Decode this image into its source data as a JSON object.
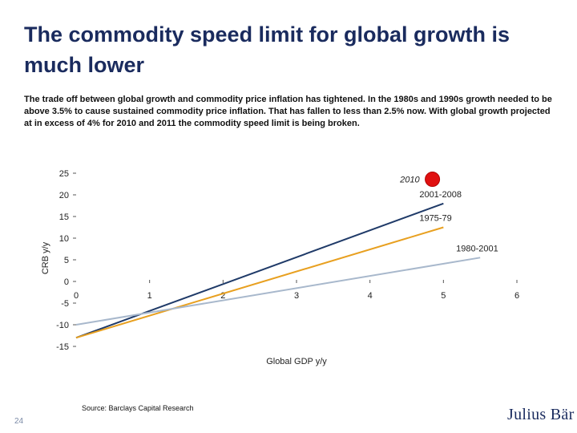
{
  "slide": {
    "title": "The commodity speed limit for global growth is much lower",
    "subtitle": "The trade off between global growth and commodity price inflation has tightened. In the 1980s and 1990s growth needed to be above 3.5% to cause sustained commodity price inflation.  That has fallen to less than 2.5% now. With global growth projected at in excess of 4% for 2010 and 2011 the commodity speed limit is being broken.",
    "source": "Source: Barclays Capital Research",
    "page_number": "24",
    "logo_text": "Julius Bär"
  },
  "chart_data": {
    "type": "line",
    "xlabel": "Global GDP y/y",
    "ylabel": "CRB y/y",
    "xlim": [
      0,
      6
    ],
    "ylim": [
      -15,
      25
    ],
    "x_ticks": [
      0,
      1,
      2,
      3,
      4,
      5,
      6
    ],
    "y_ticks": [
      25,
      20,
      15,
      10,
      5,
      0,
      -5,
      -10,
      -15
    ],
    "grid": false,
    "series": [
      {
        "name": "2001-2008",
        "color": "#1f3a68",
        "x": [
          0,
          5
        ],
        "y": [
          -13,
          18
        ]
      },
      {
        "name": "1975-79",
        "color": "#e8a020",
        "x": [
          0,
          5
        ],
        "y": [
          -13,
          12.5
        ]
      },
      {
        "name": "1980-2001",
        "color": "#a8b8cc",
        "x": [
          0,
          5.5
        ],
        "y": [
          -10,
          5.5
        ]
      }
    ],
    "points": [
      {
        "label": "2010",
        "x": 4.85,
        "y": 23.6,
        "color": "#e01010"
      }
    ]
  }
}
